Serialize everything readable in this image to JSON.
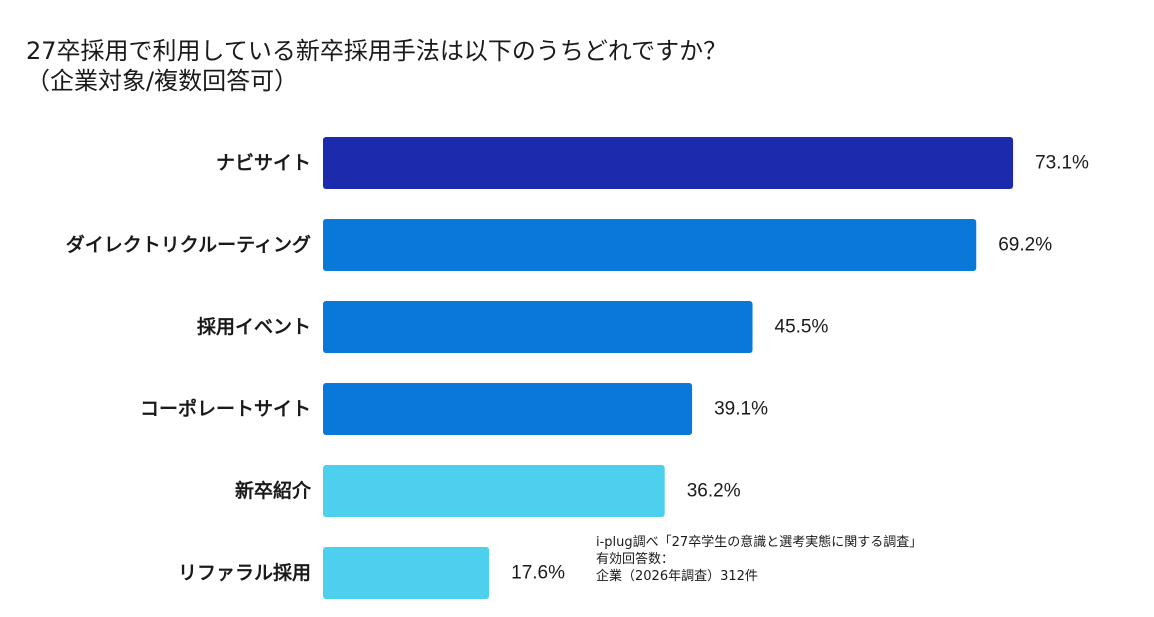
{
  "title": {
    "line1": "27卒採用で利用している新卒採用手法は以下のうちどれですか？",
    "line2": "（企業対象/複数回答可）"
  },
  "source": {
    "line1": "i-plug調べ「27卒学生の意識と選考実態に関する調査」",
    "line2": "有効回答数：",
    "line3": "企業（2026年調査）312件"
  },
  "colors": {
    "dark_blue": "#1c2aae",
    "mid_blue": "#0a78d8",
    "light_blue": "#4dd0ee"
  },
  "chart_data": {
    "type": "bar",
    "orientation": "horizontal",
    "categories": [
      "ナビサイト",
      "ダイレクトリクルーティング",
      "採用イベント",
      "コーポレートサイト",
      "新卒紹介",
      "リファラル採用"
    ],
    "values": [
      73.1,
      69.2,
      45.5,
      39.1,
      36.2,
      17.6
    ],
    "value_labels": [
      "73.1%",
      "69.2%",
      "45.5%",
      "39.1%",
      "36.2%",
      "17.6%"
    ],
    "bar_colors": [
      "#1c2aae",
      "#0a78d8",
      "#0a78d8",
      "#0a78d8",
      "#4dd0ee",
      "#4dd0ee"
    ],
    "unit": "%",
    "xlim": [
      0,
      100
    ],
    "grid": false,
    "legend": "none"
  }
}
